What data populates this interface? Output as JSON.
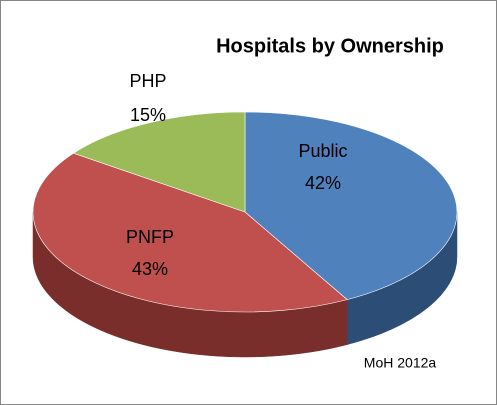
{
  "chart_data": {
    "type": "pie3d",
    "title": "Hospitals by Ownership",
    "categories": [
      "Public",
      "PNFP",
      "PHP"
    ],
    "values": [
      42,
      43,
      15
    ],
    "value_labels": [
      "42%",
      "43%",
      "15%"
    ],
    "colors": [
      "#4f81bd",
      "#c0504d",
      "#9bbb59"
    ],
    "side_colors": [
      "#2c4d75",
      "#7a2e2c",
      "#5f7530"
    ],
    "annotation": "MoH 2012a"
  }
}
